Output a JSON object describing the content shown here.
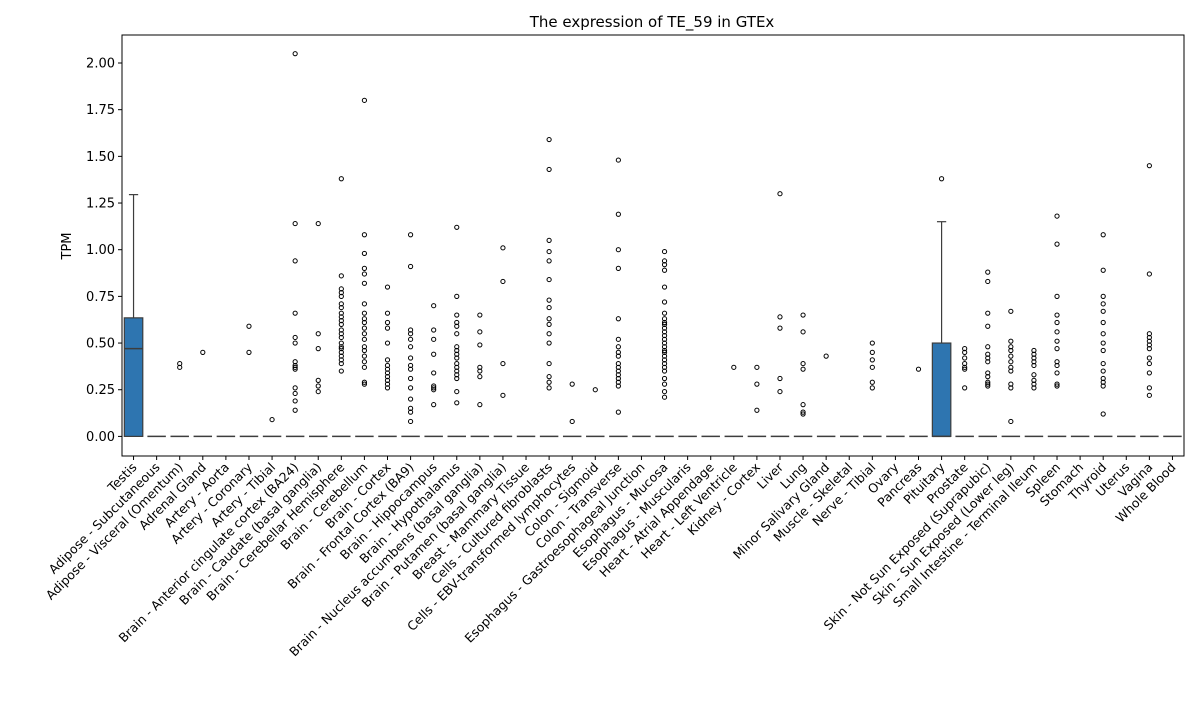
{
  "chart_data": {
    "type": "box",
    "title": "The expression of TE_59 in GTEx",
    "xlabel": "",
    "ylabel": "TPM",
    "ylim": [
      -0.105,
      2.15
    ],
    "yticks": [
      0.0,
      0.25,
      0.5,
      0.75,
      1.0,
      1.25,
      1.5,
      1.75,
      2.0
    ],
    "ytick_labels": [
      "0.00",
      "0.25",
      "0.50",
      "0.75",
      "1.00",
      "1.25",
      "1.50",
      "1.75",
      "2.00"
    ],
    "grid": false,
    "legend": "none",
    "box_color": "#2e75b0",
    "categories": [
      "Testis",
      "Adipose - Subcutaneous",
      "Adipose - Visceral (Omentum)",
      "Adrenal Gland",
      "Artery - Aorta",
      "Artery - Coronary",
      "Artery - Tibial",
      "Brain - Anterior cingulate cortex (BA24)",
      "Brain - Caudate (basal ganglia)",
      "Brain - Cerebellar Hemisphere",
      "Brain - Cerebellum",
      "Brain - Cortex",
      "Brain - Frontal Cortex (BA9)",
      "Brain - Hippocampus",
      "Brain - Hypothalamus",
      "Brain - Nucleus accumbens (basal ganglia)",
      "Brain - Putamen (basal ganglia)",
      "Breast - Mammary Tissue",
      "Cells - Cultured fibroblasts",
      "Cells - EBV-transformed lymphocytes",
      "Colon - Sigmoid",
      "Colon - Transverse",
      "Esophagus - Gastroesophageal Junction",
      "Esophagus - Mucosa",
      "Esophagus - Muscularis",
      "Heart - Atrial Appendage",
      "Heart - Left Ventricle",
      "Kidney - Cortex",
      "Liver",
      "Lung",
      "Minor Salivary Gland",
      "Muscle - Skeletal",
      "Nerve - Tibial",
      "Ovary",
      "Pancreas",
      "Pituitary",
      "Prostate",
      "Skin - Not Sun Exposed (Suprapubic)",
      "Skin - Sun Exposed (Lower leg)",
      "Small Intestine - Terminal Ileum",
      "Spleen",
      "Stomach",
      "Thyroid",
      "Uterus",
      "Vagina",
      "Whole Blood"
    ],
    "boxes": [
      {
        "q1": 0,
        "median": 0.47,
        "q3": 0.635,
        "whisker_low": 0,
        "whisker_high": 1.295,
        "outliers": []
      },
      {
        "q1": 0,
        "median": 0,
        "q3": 0,
        "whisker_low": 0,
        "whisker_high": 0,
        "outliers": []
      },
      {
        "q1": 0,
        "median": 0,
        "q3": 0,
        "whisker_low": 0,
        "whisker_high": 0,
        "outliers": [
          0.39,
          0.37
        ]
      },
      {
        "q1": 0,
        "median": 0,
        "q3": 0,
        "whisker_low": 0,
        "whisker_high": 0,
        "outliers": [
          0.45
        ]
      },
      {
        "q1": 0,
        "median": 0,
        "q3": 0,
        "whisker_low": 0,
        "whisker_high": 0,
        "outliers": []
      },
      {
        "q1": 0,
        "median": 0,
        "q3": 0,
        "whisker_low": 0,
        "whisker_high": 0,
        "outliers": [
          0.59,
          0.45
        ]
      },
      {
        "q1": 0,
        "median": 0,
        "q3": 0,
        "whisker_low": 0,
        "whisker_high": 0,
        "outliers": [
          0.09
        ]
      },
      {
        "q1": 0,
        "median": 0,
        "q3": 0,
        "whisker_low": 0,
        "whisker_high": 0,
        "outliers": [
          2.05,
          1.14,
          0.94,
          0.66,
          0.53,
          0.5,
          0.4,
          0.38,
          0.37,
          0.36,
          0.26,
          0.23,
          0.19,
          0.14
        ]
      },
      {
        "q1": 0,
        "median": 0,
        "q3": 0,
        "whisker_low": 0,
        "whisker_high": 0,
        "outliers": [
          1.14,
          0.55,
          0.47,
          0.3,
          0.27,
          0.24
        ]
      },
      {
        "q1": 0,
        "median": 0,
        "q3": 0,
        "whisker_low": 0,
        "whisker_high": 0,
        "outliers": [
          1.38,
          0.86,
          0.79,
          0.77,
          0.75,
          0.71,
          0.69,
          0.66,
          0.64,
          0.62,
          0.6,
          0.57,
          0.55,
          0.53,
          0.5,
          0.48,
          0.47,
          0.45,
          0.43,
          0.41,
          0.39,
          0.35
        ]
      },
      {
        "q1": 0,
        "median": 0,
        "q3": 0,
        "whisker_low": 0,
        "whisker_high": 0,
        "outliers": [
          1.8,
          1.08,
          0.98,
          0.9,
          0.87,
          0.82,
          0.71,
          0.66,
          0.63,
          0.61,
          0.58,
          0.55,
          0.52,
          0.48,
          0.46,
          0.43,
          0.4,
          0.37,
          0.29,
          0.28
        ]
      },
      {
        "q1": 0,
        "median": 0,
        "q3": 0,
        "whisker_low": 0,
        "whisker_high": 0,
        "outliers": [
          0.8,
          0.66,
          0.61,
          0.58,
          0.5,
          0.41,
          0.38,
          0.36,
          0.34,
          0.32,
          0.3,
          0.28,
          0.26
        ]
      },
      {
        "q1": 0,
        "median": 0,
        "q3": 0,
        "whisker_low": 0,
        "whisker_high": 0,
        "outliers": [
          1.08,
          0.91,
          0.57,
          0.55,
          0.52,
          0.48,
          0.42,
          0.38,
          0.36,
          0.31,
          0.26,
          0.2,
          0.15,
          0.13,
          0.08
        ]
      },
      {
        "q1": 0,
        "median": 0,
        "q3": 0,
        "whisker_low": 0,
        "whisker_high": 0,
        "outliers": [
          0.7,
          0.57,
          0.52,
          0.44,
          0.34,
          0.27,
          0.26,
          0.25,
          0.17
        ]
      },
      {
        "q1": 0,
        "median": 0,
        "q3": 0,
        "whisker_low": 0,
        "whisker_high": 0,
        "outliers": [
          1.12,
          0.75,
          0.65,
          0.61,
          0.59,
          0.55,
          0.48,
          0.46,
          0.44,
          0.42,
          0.39,
          0.37,
          0.35,
          0.33,
          0.31,
          0.24,
          0.18
        ]
      },
      {
        "q1": 0,
        "median": 0,
        "q3": 0,
        "whisker_low": 0,
        "whisker_high": 0,
        "outliers": [
          0.65,
          0.56,
          0.49,
          0.37,
          0.35,
          0.32,
          0.17
        ]
      },
      {
        "q1": 0,
        "median": 0,
        "q3": 0,
        "whisker_low": 0,
        "whisker_high": 0,
        "outliers": [
          1.01,
          0.83,
          0.39,
          0.22
        ]
      },
      {
        "q1": 0,
        "median": 0,
        "q3": 0,
        "whisker_low": 0,
        "whisker_high": 0,
        "outliers": []
      },
      {
        "q1": 0,
        "median": 0,
        "q3": 0,
        "whisker_low": 0,
        "whisker_high": 0,
        "outliers": [
          1.59,
          1.43,
          1.05,
          0.99,
          0.94,
          0.84,
          0.73,
          0.69,
          0.63,
          0.6,
          0.55,
          0.5,
          0.39,
          0.32,
          0.29,
          0.26
        ]
      },
      {
        "q1": 0,
        "median": 0,
        "q3": 0,
        "whisker_low": 0,
        "whisker_high": 0,
        "outliers": [
          0.28,
          0.08
        ]
      },
      {
        "q1": 0,
        "median": 0,
        "q3": 0,
        "whisker_low": 0,
        "whisker_high": 0,
        "outliers": [
          0.25
        ]
      },
      {
        "q1": 0,
        "median": 0,
        "q3": 0,
        "whisker_low": 0,
        "whisker_high": 0,
        "outliers": [
          1.48,
          1.19,
          1.0,
          0.9,
          0.63,
          0.52,
          0.48,
          0.45,
          0.43,
          0.39,
          0.37,
          0.35,
          0.33,
          0.31,
          0.29,
          0.27,
          0.13
        ]
      },
      {
        "q1": 0,
        "median": 0,
        "q3": 0,
        "whisker_low": 0,
        "whisker_high": 0,
        "outliers": []
      },
      {
        "q1": 0,
        "median": 0,
        "q3": 0,
        "whisker_low": 0,
        "whisker_high": 0,
        "outliers": [
          0.99,
          0.94,
          0.92,
          0.89,
          0.8,
          0.72,
          0.66,
          0.63,
          0.61,
          0.6,
          0.58,
          0.56,
          0.54,
          0.52,
          0.5,
          0.48,
          0.46,
          0.45,
          0.43,
          0.41,
          0.39,
          0.37,
          0.35,
          0.31,
          0.28,
          0.24,
          0.21
        ]
      },
      {
        "q1": 0,
        "median": 0,
        "q3": 0,
        "whisker_low": 0,
        "whisker_high": 0,
        "outliers": []
      },
      {
        "q1": 0,
        "median": 0,
        "q3": 0,
        "whisker_low": 0,
        "whisker_high": 0,
        "outliers": []
      },
      {
        "q1": 0,
        "median": 0,
        "q3": 0,
        "whisker_low": 0,
        "whisker_high": 0,
        "outliers": [
          0.37
        ]
      },
      {
        "q1": 0,
        "median": 0,
        "q3": 0,
        "whisker_low": 0,
        "whisker_high": 0,
        "outliers": [
          0.37,
          0.28,
          0.14
        ]
      },
      {
        "q1": 0,
        "median": 0,
        "q3": 0,
        "whisker_low": 0,
        "whisker_high": 0,
        "outliers": [
          1.3,
          0.64,
          0.58,
          0.31,
          0.24
        ]
      },
      {
        "q1": 0,
        "median": 0,
        "q3": 0,
        "whisker_low": 0,
        "whisker_high": 0,
        "outliers": [
          0.65,
          0.56,
          0.39,
          0.36,
          0.17,
          0.13,
          0.12
        ]
      },
      {
        "q1": 0,
        "median": 0,
        "q3": 0,
        "whisker_low": 0,
        "whisker_high": 0,
        "outliers": [
          0.43
        ]
      },
      {
        "q1": 0,
        "median": 0,
        "q3": 0,
        "whisker_low": 0,
        "whisker_high": 0,
        "outliers": []
      },
      {
        "q1": 0,
        "median": 0,
        "q3": 0,
        "whisker_low": 0,
        "whisker_high": 0,
        "outliers": [
          0.5,
          0.45,
          0.41,
          0.37,
          0.29,
          0.26
        ]
      },
      {
        "q1": 0,
        "median": 0,
        "q3": 0,
        "whisker_low": 0,
        "whisker_high": 0,
        "outliers": []
      },
      {
        "q1": 0,
        "median": 0,
        "q3": 0,
        "whisker_low": 0,
        "whisker_high": 0,
        "outliers": [
          0.36
        ]
      },
      {
        "q1": 0,
        "median": 0,
        "q3": 0.5,
        "whisker_low": 0,
        "whisker_high": 1.15,
        "outliers": [
          1.38
        ]
      },
      {
        "q1": 0,
        "median": 0,
        "q3": 0,
        "whisker_low": 0,
        "whisker_high": 0,
        "outliers": [
          0.47,
          0.45,
          0.42,
          0.39,
          0.37,
          0.36,
          0.26
        ]
      },
      {
        "q1": 0,
        "median": 0,
        "q3": 0,
        "whisker_low": 0,
        "whisker_high": 0,
        "outliers": [
          0.88,
          0.83,
          0.66,
          0.59,
          0.48,
          0.44,
          0.42,
          0.4,
          0.34,
          0.32,
          0.29,
          0.28,
          0.27
        ]
      },
      {
        "q1": 0,
        "median": 0,
        "q3": 0,
        "whisker_low": 0,
        "whisker_high": 0,
        "outliers": [
          0.67,
          0.51,
          0.48,
          0.46,
          0.43,
          0.4,
          0.37,
          0.35,
          0.28,
          0.26,
          0.08
        ]
      },
      {
        "q1": 0,
        "median": 0,
        "q3": 0,
        "whisker_low": 0,
        "whisker_high": 0,
        "outliers": [
          0.46,
          0.44,
          0.42,
          0.4,
          0.38,
          0.33,
          0.3,
          0.28,
          0.26
        ]
      },
      {
        "q1": 0,
        "median": 0,
        "q3": 0,
        "whisker_low": 0,
        "whisker_high": 0,
        "outliers": [
          1.18,
          1.03,
          0.75,
          0.65,
          0.61,
          0.56,
          0.51,
          0.47,
          0.4,
          0.38,
          0.34,
          0.28,
          0.27
        ]
      },
      {
        "q1": 0,
        "median": 0,
        "q3": 0,
        "whisker_low": 0,
        "whisker_high": 0,
        "outliers": []
      },
      {
        "q1": 0,
        "median": 0,
        "q3": 0,
        "whisker_low": 0,
        "whisker_high": 0,
        "outliers": [
          1.08,
          0.89,
          0.75,
          0.71,
          0.67,
          0.61,
          0.55,
          0.5,
          0.46,
          0.39,
          0.35,
          0.31,
          0.29,
          0.27,
          0.12
        ]
      },
      {
        "q1": 0,
        "median": 0,
        "q3": 0,
        "whisker_low": 0,
        "whisker_high": 0,
        "outliers": []
      },
      {
        "q1": 0,
        "median": 0,
        "q3": 0,
        "whisker_low": 0,
        "whisker_high": 0,
        "outliers": [
          1.45,
          0.87,
          0.55,
          0.53,
          0.51,
          0.49,
          0.47,
          0.42,
          0.39,
          0.34,
          0.26,
          0.22
        ]
      },
      {
        "q1": 0,
        "median": 0,
        "q3": 0,
        "whisker_low": 0,
        "whisker_high": 0,
        "outliers": []
      }
    ]
  }
}
